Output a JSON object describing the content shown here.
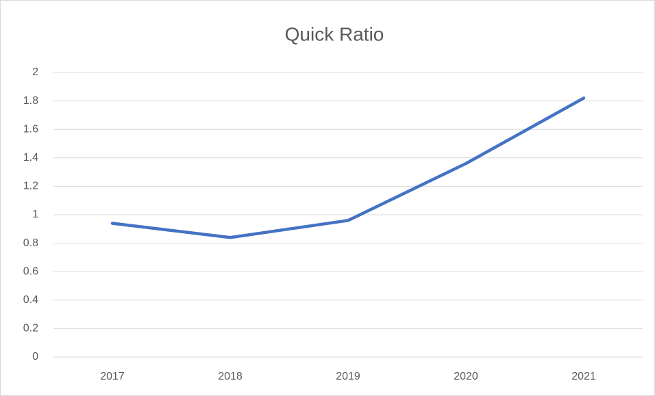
{
  "chart_data": {
    "type": "line",
    "title": "Quick Ratio",
    "categories": [
      "2017",
      "2018",
      "2019",
      "2020",
      "2021"
    ],
    "series": [
      {
        "name": "Quick Ratio",
        "color": "#4472c4",
        "values": [
          0.94,
          0.84,
          0.96,
          1.36,
          1.82
        ]
      }
    ],
    "ylim": [
      0,
      2
    ],
    "yticks": [
      0,
      0.2,
      0.4,
      0.6,
      0.8,
      1,
      1.2,
      1.4,
      1.6,
      1.8,
      2
    ],
    "grid": true
  }
}
